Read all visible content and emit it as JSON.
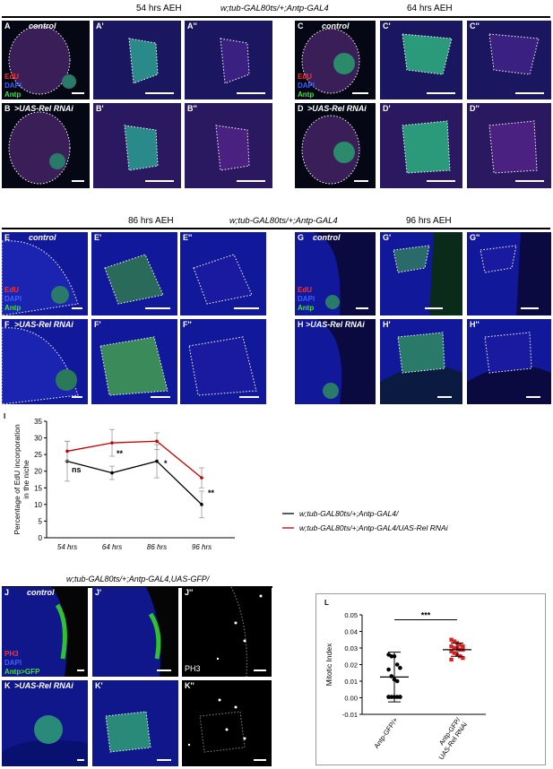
{
  "top_section": {
    "time_left": "54 hrs AEH",
    "genotype": "w;tub-GAL80ts/+;Antp-GAL4",
    "time_right": "64 hrs AEH",
    "panels": {
      "A": "A",
      "A1": "A'",
      "A2": "A''",
      "B": "B",
      "B1": "B'",
      "B2": "B''",
      "C": "C",
      "C1": "C'",
      "C2": "C''",
      "D": "D",
      "D1": "D'",
      "D2": "D''"
    },
    "cond_control": "control",
    "cond_rnai": ">UAS-Rel RNAi",
    "legend": [
      "EdU",
      "DAPI",
      "Antp"
    ]
  },
  "mid_section": {
    "time_left": "86 hrs AEH",
    "genotype": "w;tub-GAL80ts/+;Antp-GAL4",
    "time_right": "96 hrs AEH",
    "panels": {
      "E": "E",
      "E1": "E'",
      "E2": "E''",
      "F": "F",
      "F1": "F'",
      "F2": "F''",
      "G": "G",
      "G1": "G'",
      "G2": "G''",
      "H": "H",
      "H1": "H'",
      "H2": "H''"
    },
    "cond_control": "control",
    "cond_rnai": ">UAS-Rel RNAi",
    "legend": [
      "EdU",
      "DAPI",
      "Antp"
    ]
  },
  "panel_I": {
    "label": "I",
    "chart_data": {
      "type": "line",
      "categories": [
        "54 hrs",
        "64 hrs",
        "86 hrs",
        "96 hrs"
      ],
      "ylabel": "Percentage of EdU incorporation in the niche",
      "ylim": [
        0,
        35
      ],
      "yticks": [
        "0",
        "5",
        "10",
        "15",
        "20",
        "25",
        "30",
        "35"
      ],
      "series": [
        {
          "name": "w;tub-GAL80ts/+;Antp-GAL4/",
          "color": "#000000",
          "values": [
            23,
            19.5,
            23,
            10
          ],
          "err": [
            6,
            2,
            5,
            4
          ]
        },
        {
          "name": "w;tub-GAL80ts/+;Antp-GAL4/UAS-Rel RNAi",
          "color": "#c00000",
          "values": [
            26,
            28.5,
            29,
            18
          ],
          "err": [
            3,
            4,
            2.5,
            3
          ]
        }
      ],
      "annotations": [
        "ns",
        "**",
        "*",
        "**"
      ]
    }
  },
  "bottom_section": {
    "genotype": "w;tub-GAL80ts/+;Antp-GAL4,UAS-GFP/",
    "panels": {
      "J": "J",
      "J1": "J'",
      "J2": "J''",
      "K": "K",
      "K1": "K'",
      "K2": "K''"
    },
    "cond_control": "control",
    "cond_rnai": ">UAS-Rel RNAi",
    "legend": [
      "PH3",
      "DAPI",
      "Antp>GFP"
    ],
    "ph3_label": "PH3"
  },
  "panel_L": {
    "label": "L",
    "chart_data": {
      "type": "scatter",
      "categories": [
        "Antp-GFP/+",
        "Antp-GFP/ UAS-Rel RNAi"
      ],
      "ylabel": "Mitotic Index",
      "ylim": [
        -0.01,
        0.05
      ],
      "yticks": [
        "0.05",
        "0.04",
        "0.03",
        "0.02",
        "0.01",
        "0.00",
        "-0.01"
      ],
      "series": [
        {
          "name": "Antp-GFP/+",
          "color": "#000000",
          "mean": 0.0125,
          "sd": 0.015,
          "values": [
            0.026,
            0.025,
            0.025,
            0.02,
            0.018,
            0.017,
            0.013,
            0.011,
            0.01,
            0.0005,
            0.0005,
            0.0005,
            0.0005,
            0.0005,
            0.0005,
            0.0005
          ]
        },
        {
          "name": "Antp-GFP/ UAS-Rel RNAi",
          "color": "#e02020",
          "mean": 0.029,
          "sd": 0.004,
          "values": [
            0.035,
            0.034,
            0.033,
            0.032,
            0.031,
            0.031,
            0.03,
            0.03,
            0.029,
            0.029,
            0.028,
            0.027,
            0.026,
            0.025,
            0.024,
            0.023
          ]
        }
      ],
      "annotation": "***"
    }
  }
}
